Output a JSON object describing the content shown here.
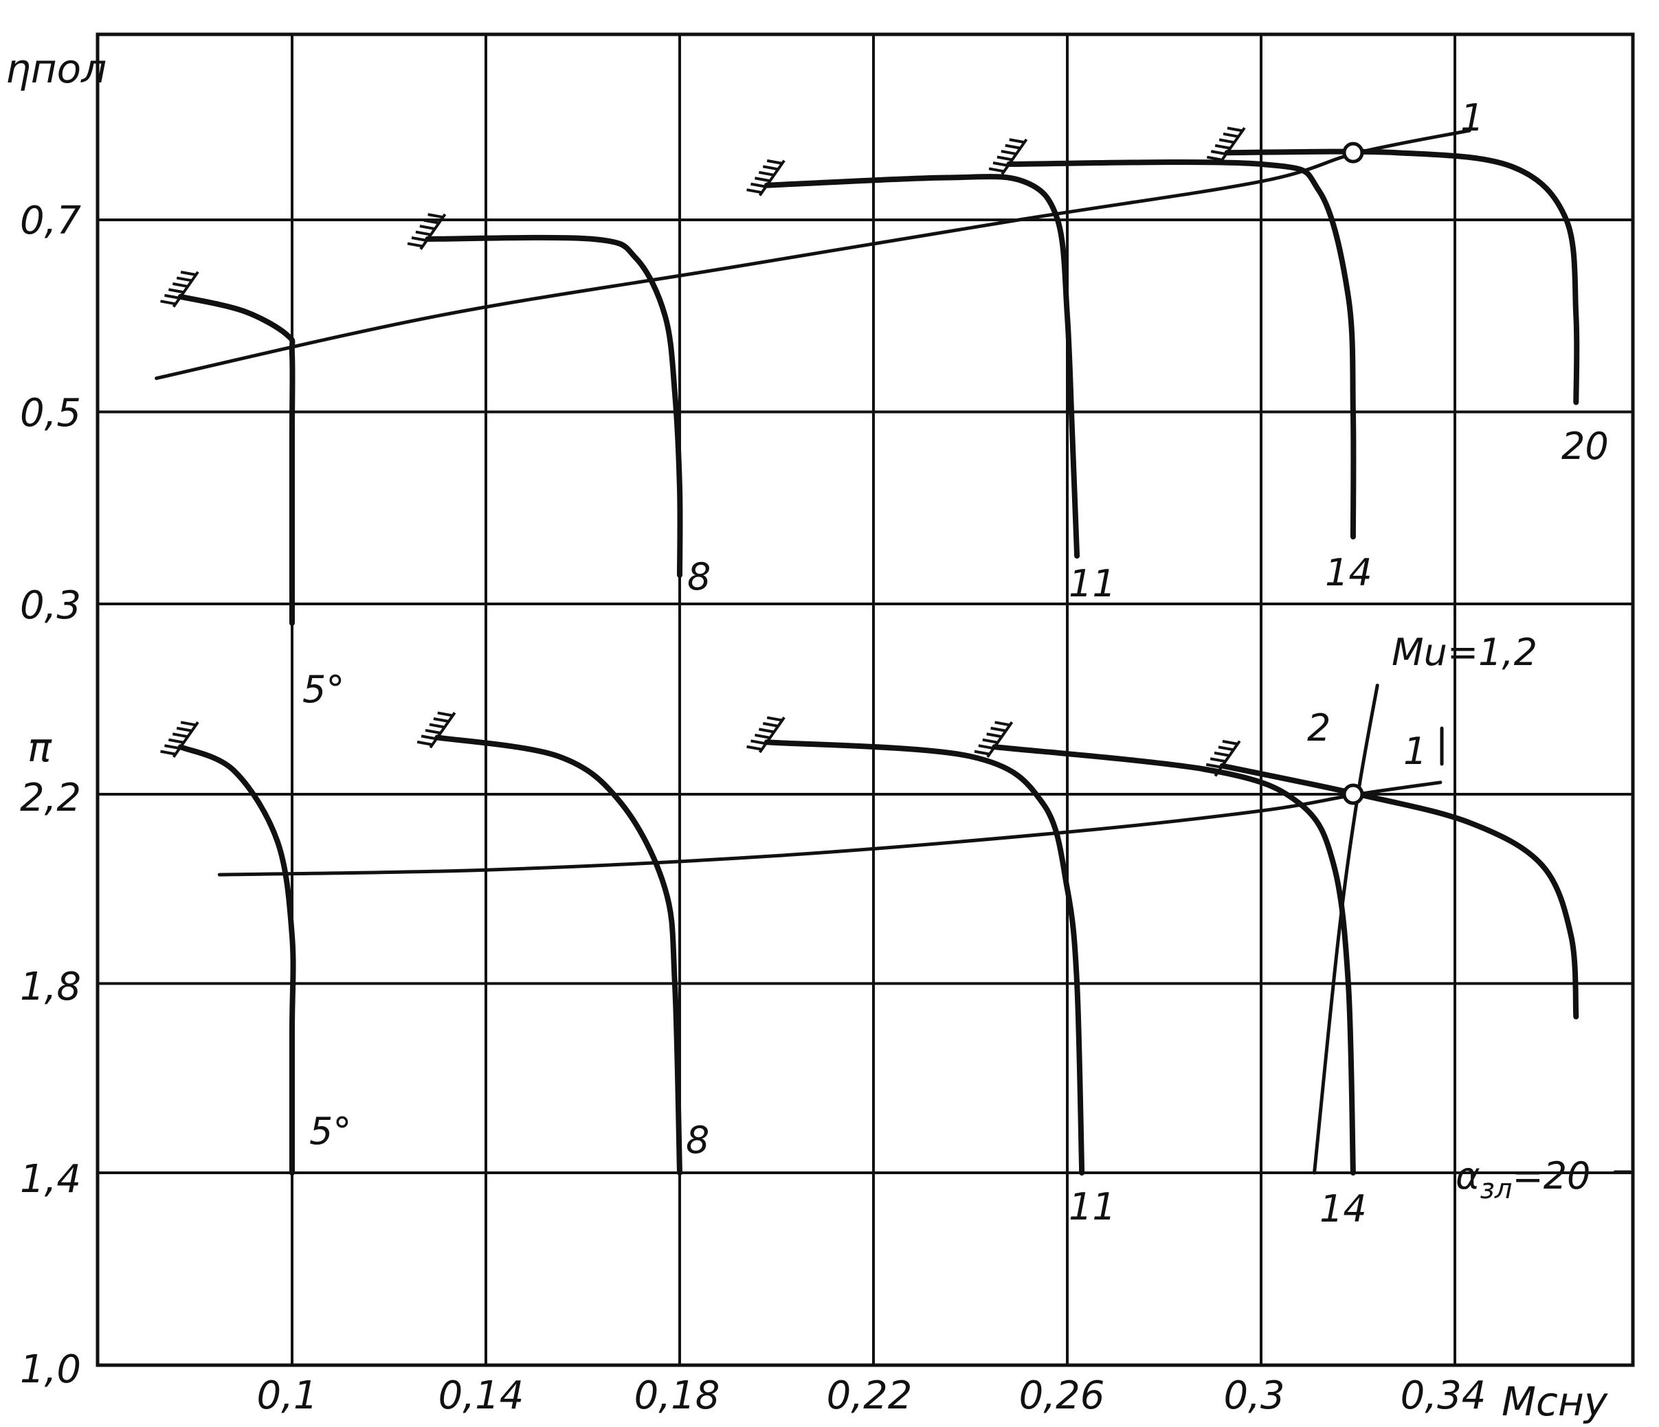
{
  "chart_data": {
    "type": "line",
    "x_label": "Mсну",
    "x_ticks": [
      "0,1",
      "0,14",
      "0,18",
      "0,22",
      "0,26",
      "0,3",
      "0,34"
    ],
    "x_tick_values": [
      0.1,
      0.14,
      0.18,
      0.22,
      0.26,
      0.3,
      0.34
    ],
    "xlim": [
      0.059,
      0.38
    ],
    "top_panel": {
      "y_label": "ηпол",
      "y_ticks": [
        "0,7",
        "0,5",
        "0,3"
      ],
      "y_tick_values": [
        0.7,
        0.5,
        0.3
      ],
      "series": [
        {
          "name": "5°",
          "points": [
            [
              0.077,
              0.62
            ],
            [
              0.09,
              0.605
            ],
            [
              0.099,
              0.58
            ],
            [
              0.1,
              0.56
            ],
            [
              0.1,
              0.48
            ],
            [
              0.1,
              0.38
            ],
            [
              0.1,
              0.28
            ]
          ]
        },
        {
          "name": "8",
          "points": [
            [
              0.128,
              0.68
            ],
            [
              0.162,
              0.68
            ],
            [
              0.171,
              0.66
            ],
            [
              0.177,
              0.6
            ],
            [
              0.179,
              0.52
            ],
            [
              0.18,
              0.42
            ],
            [
              0.18,
              0.33
            ]
          ]
        },
        {
          "name": "11",
          "points": [
            [
              0.198,
              0.736
            ],
            [
              0.235,
              0.744
            ],
            [
              0.251,
              0.74
            ],
            [
              0.258,
              0.7
            ],
            [
              0.26,
              0.6
            ],
            [
              0.261,
              0.48
            ],
            [
              0.262,
              0.35
            ]
          ]
        },
        {
          "name": "14",
          "points": [
            [
              0.248,
              0.758
            ],
            [
              0.3,
              0.758
            ],
            [
              0.312,
              0.73
            ],
            [
              0.318,
              0.62
            ],
            [
              0.319,
              0.5
            ],
            [
              0.319,
              0.37
            ]
          ]
        },
        {
          "name": "20",
          "points": [
            [
              0.293,
              0.77
            ],
            [
              0.328,
              0.77
            ],
            [
              0.352,
              0.755
            ],
            [
              0.363,
              0.7
            ],
            [
              0.365,
              0.6
            ],
            [
              0.365,
              0.51
            ]
          ]
        },
        {
          "name": "1",
          "points": [
            [
              0.072,
              0.535
            ],
            [
              0.13,
              0.6
            ],
            [
              0.19,
              0.65
            ],
            [
              0.25,
              0.7
            ],
            [
              0.3,
              0.74
            ],
            [
              0.32,
              0.77
            ],
            [
              0.343,
              0.793
            ]
          ]
        }
      ],
      "markers": [
        {
          "x": 0.319,
          "y": 0.77
        }
      ]
    },
    "bottom_panel": {
      "y_label": "π",
      "y_ticks": [
        "2,2",
        "1,8",
        "1,4",
        "1,0"
      ],
      "y_tick_values": [
        2.2,
        1.8,
        1.4,
        1.0
      ],
      "series": [
        {
          "name": "5°",
          "points": [
            [
              0.077,
              2.3
            ],
            [
              0.088,
              2.25
            ],
            [
              0.097,
              2.1
            ],
            [
              0.1,
              1.9
            ],
            [
              0.1,
              1.7
            ],
            [
              0.1,
              1.4
            ]
          ]
        },
        {
          "name": "8",
          "points": [
            [
              0.13,
              2.32
            ],
            [
              0.155,
              2.28
            ],
            [
              0.168,
              2.18
            ],
            [
              0.177,
              2.0
            ],
            [
              0.179,
              1.8
            ],
            [
              0.18,
              1.4
            ]
          ]
        },
        {
          "name": "11",
          "points": [
            [
              0.198,
              2.31
            ],
            [
              0.24,
              2.28
            ],
            [
              0.255,
              2.18
            ],
            [
              0.26,
              2.0
            ],
            [
              0.262,
              1.8
            ],
            [
              0.263,
              1.4
            ]
          ]
        },
        {
          "name": "14",
          "points": [
            [
              0.245,
              2.3
            ],
            [
              0.29,
              2.25
            ],
            [
              0.308,
              2.18
            ],
            [
              0.315,
              2.05
            ],
            [
              0.318,
              1.8
            ],
            [
              0.319,
              1.4
            ]
          ]
        },
        {
          "name": "20",
          "points": [
            [
              0.292,
              2.26
            ],
            [
              0.32,
              2.2
            ],
            [
              0.343,
              2.14
            ],
            [
              0.358,
              2.05
            ],
            [
              0.364,
              1.9
            ],
            [
              0.365,
              1.73
            ]
          ]
        },
        {
          "name": "1",
          "points": [
            [
              0.085,
              2.03
            ],
            [
              0.14,
              2.04
            ],
            [
              0.2,
              2.07
            ],
            [
              0.26,
              2.12
            ],
            [
              0.3,
              2.165
            ],
            [
              0.32,
              2.2
            ],
            [
              0.337,
              2.225
            ]
          ]
        },
        {
          "name": "2",
          "points": [
            [
              0.311,
              1.4
            ],
            [
              0.316,
              1.9
            ],
            [
              0.32,
              2.2
            ],
            [
              0.324,
              2.43
            ]
          ]
        }
      ],
      "markers": [
        {
          "x": 0.319,
          "y": 2.2
        }
      ]
    },
    "annotations": {
      "top_curve_labels": [
        "5°",
        "8",
        "11",
        "14",
        "20"
      ],
      "bottom_curve_labels": [
        "5°",
        "8",
        "11",
        "14"
      ],
      "alpha_label": "α",
      "alpha_sub": "зл",
      "alpha_value": "=20",
      "mu_label": "Mu=1,2",
      "line1_top": "1",
      "line1_bottom": "1",
      "line2_bottom": "2"
    }
  }
}
